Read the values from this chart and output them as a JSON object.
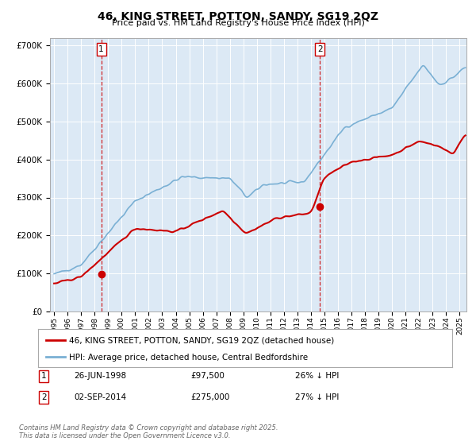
{
  "title": "46, KING STREET, POTTON, SANDY, SG19 2QZ",
  "subtitle": "Price paid vs. HM Land Registry's House Price Index (HPI)",
  "red_label": "46, KING STREET, POTTON, SANDY, SG19 2QZ (detached house)",
  "blue_label": "HPI: Average price, detached house, Central Bedfordshire",
  "annotation1_date": "26-JUN-1998",
  "annotation1_price": "£97,500",
  "annotation1_hpi": "26% ↓ HPI",
  "annotation2_date": "02-SEP-2014",
  "annotation2_price": "£275,000",
  "annotation2_hpi": "27% ↓ HPI",
  "purchase1_year": 1998.49,
  "purchase1_value": 97500,
  "purchase2_year": 2014.67,
  "purchase2_value": 275000,
  "vline1_year": 1998.49,
  "vline2_year": 2014.67,
  "ylim": [
    0,
    720000
  ],
  "xlim_start": 1994.7,
  "xlim_end": 2025.5,
  "fig_bg_color": "#ffffff",
  "plot_bg_color": "#dce9f5",
  "grid_color": "#ffffff",
  "red_color": "#cc0000",
  "blue_color": "#7ab0d4",
  "vline_color": "#cc0000",
  "yticks": [
    0,
    100000,
    200000,
    300000,
    400000,
    500000,
    600000,
    700000
  ],
  "ytick_labels": [
    "£0",
    "£100K",
    "£200K",
    "£300K",
    "£400K",
    "£500K",
    "£600K",
    "£700K"
  ],
  "footer_text": "Contains HM Land Registry data © Crown copyright and database right 2025.\nThis data is licensed under the Open Government Licence v3.0."
}
